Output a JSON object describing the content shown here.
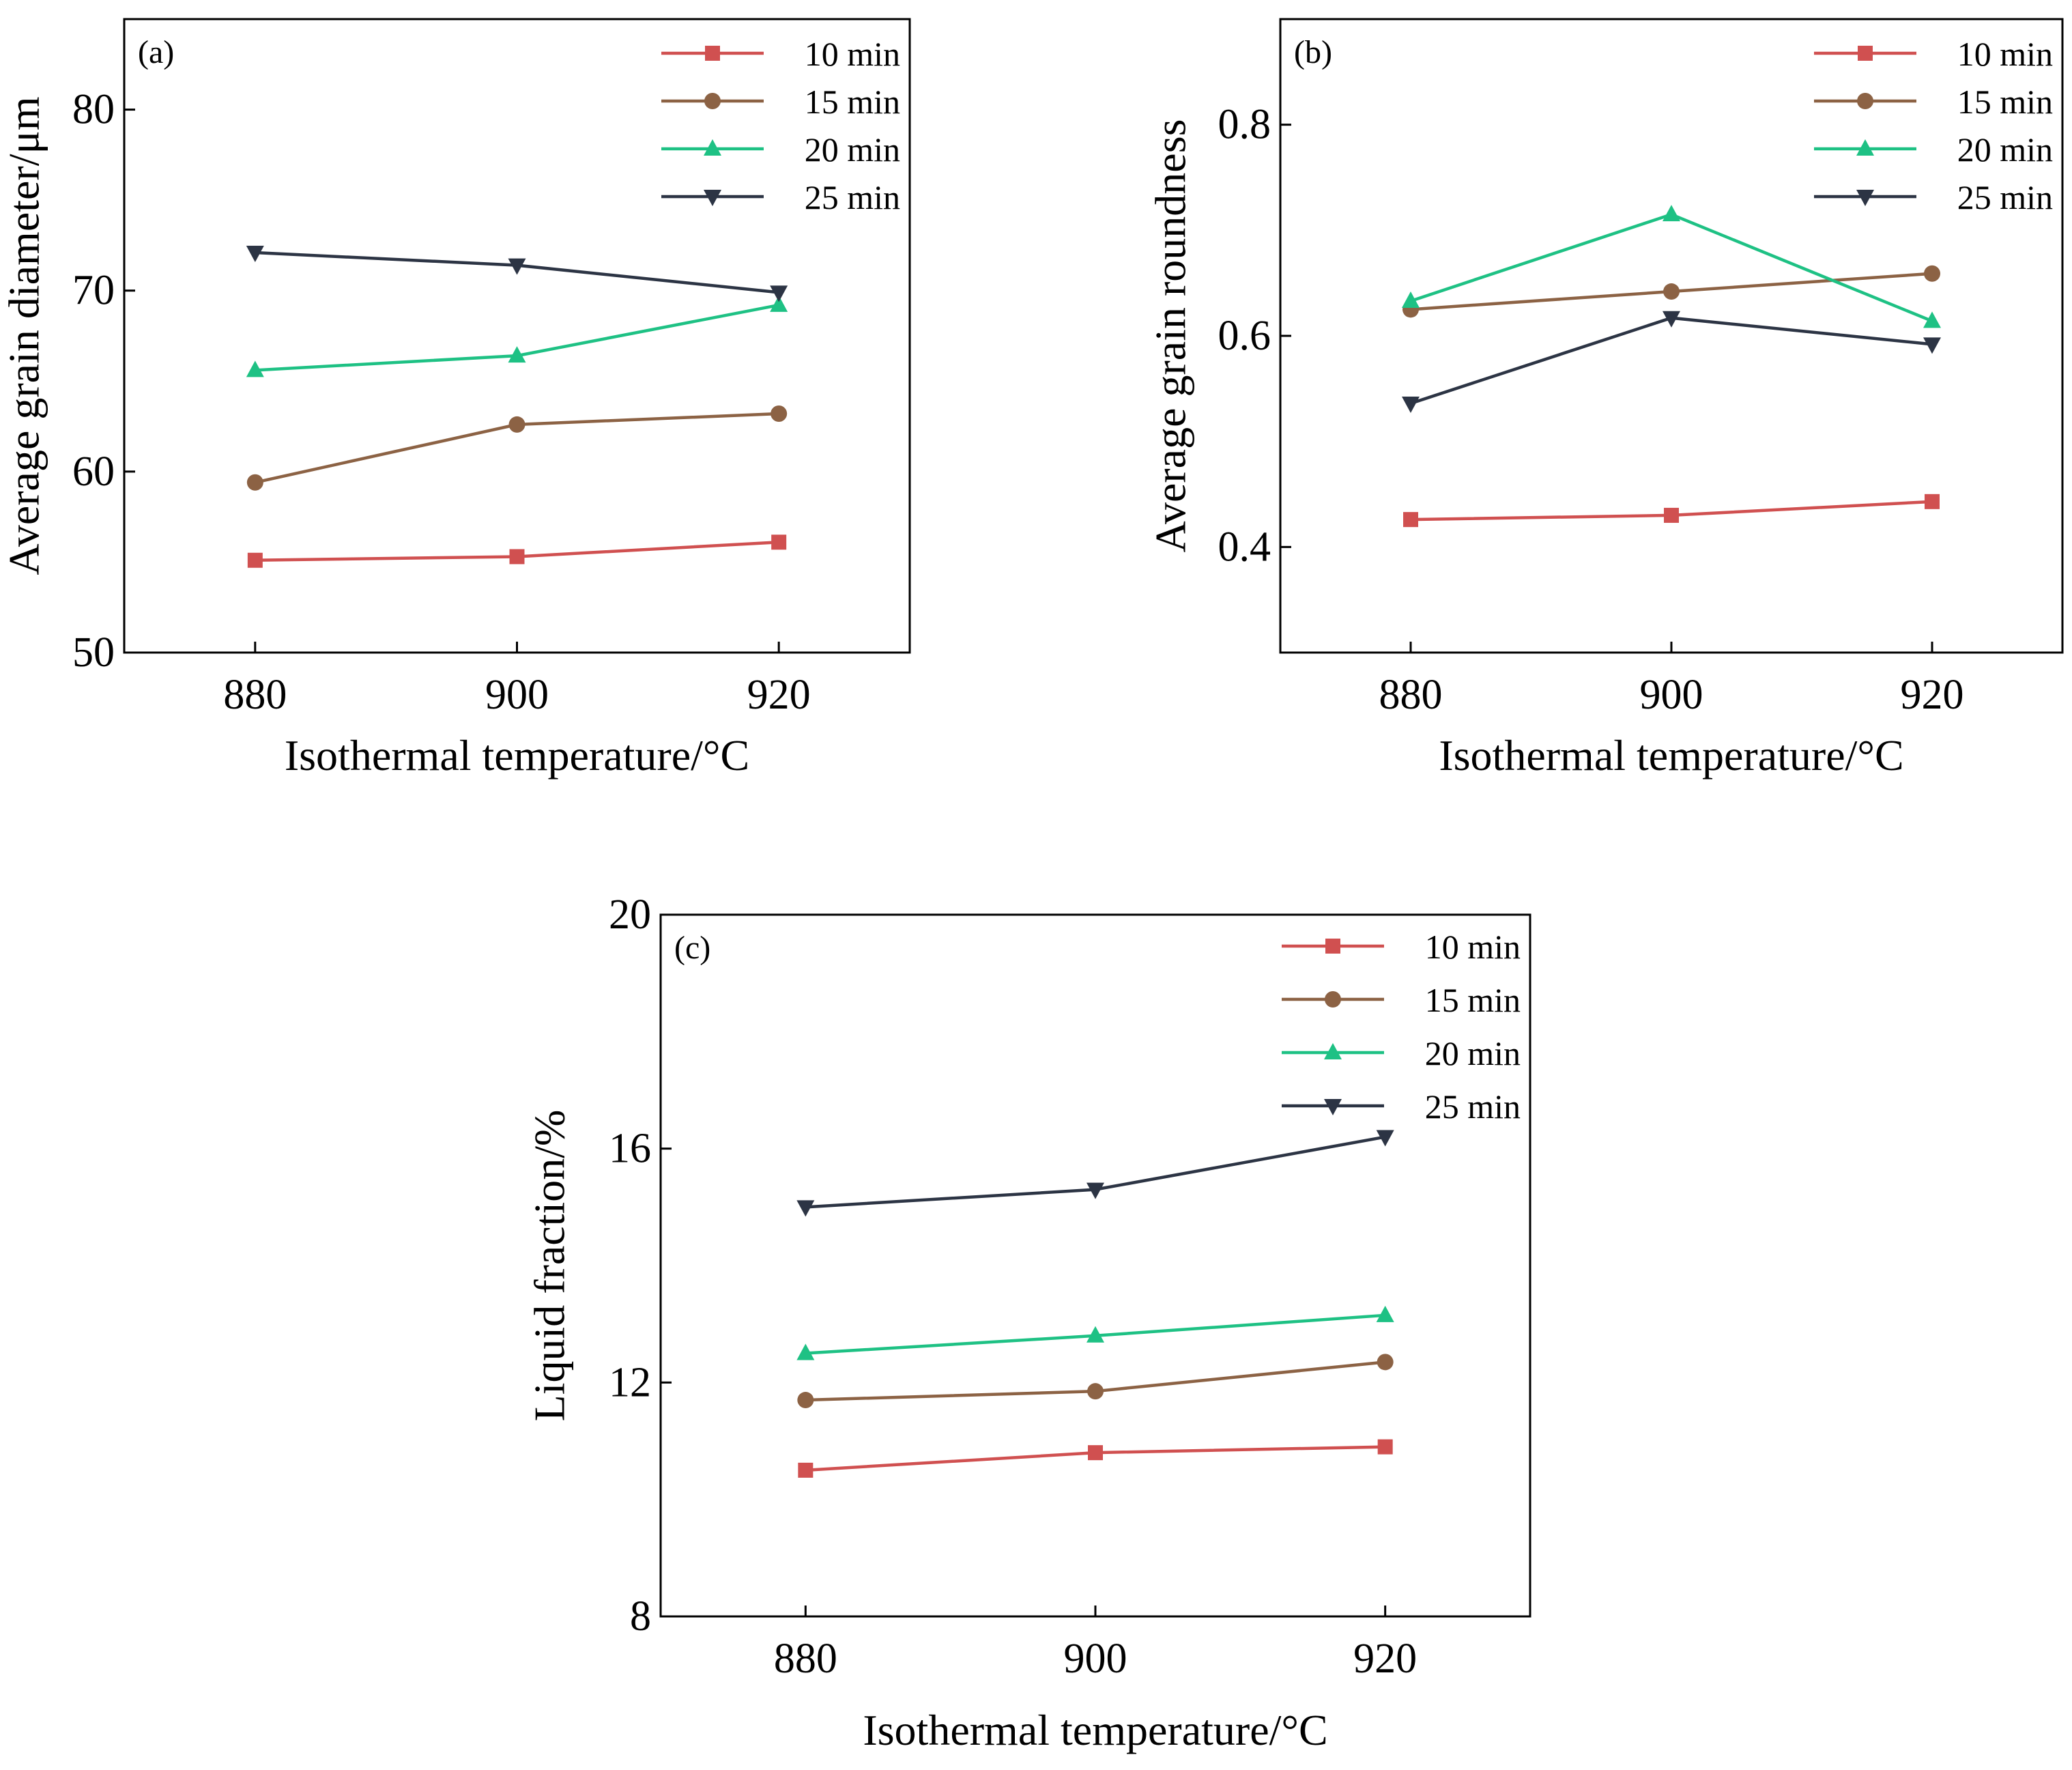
{
  "chart_data": [
    {
      "id": "a",
      "type": "line",
      "panel_label": "(a)",
      "xlabel": "Isothermal temperature/°C",
      "ylabel": "Average grain diameter/μm",
      "x": [
        880,
        900,
        920
      ],
      "xlim": [
        870,
        930
      ],
      "xticks": [
        880,
        900,
        920
      ],
      "ylim": [
        50,
        85
      ],
      "yticks": [
        50,
        60,
        70,
        80
      ],
      "legend_position": "top-right",
      "series": [
        {
          "name": "10 min",
          "marker": "square",
          "color": "#d05050",
          "values": [
            55.1,
            55.3,
            56.1
          ]
        },
        {
          "name": "15 min",
          "marker": "circle",
          "color": "#8c6244",
          "values": [
            59.4,
            62.6,
            63.2
          ]
        },
        {
          "name": "20 min",
          "marker": "triangle-up",
          "color": "#1ec184",
          "values": [
            65.6,
            66.4,
            69.2
          ]
        },
        {
          "name": "25 min",
          "marker": "triangle-down",
          "color": "#2c3444",
          "values": [
            72.1,
            71.4,
            69.9
          ]
        }
      ]
    },
    {
      "id": "b",
      "type": "line",
      "panel_label": "(b)",
      "xlabel": "Isothermal temperature/°C",
      "ylabel": "Average grain roundness",
      "x": [
        880,
        900,
        920
      ],
      "xlim": [
        870,
        930
      ],
      "xticks": [
        880,
        900,
        920
      ],
      "ylim": [
        0.3,
        0.9
      ],
      "yticks": [
        0.4,
        0.6,
        0.8
      ],
      "legend_position": "top-right",
      "series": [
        {
          "name": "10 min",
          "marker": "square",
          "color": "#d05050",
          "values": [
            0.426,
            0.43,
            0.443
          ]
        },
        {
          "name": "15 min",
          "marker": "circle",
          "color": "#8c6244",
          "values": [
            0.625,
            0.642,
            0.659
          ]
        },
        {
          "name": "20 min",
          "marker": "triangle-up",
          "color": "#1ec184",
          "values": [
            0.633,
            0.715,
            0.614
          ]
        },
        {
          "name": "25 min",
          "marker": "triangle-down",
          "color": "#2c3444",
          "values": [
            0.536,
            0.617,
            0.592
          ]
        }
      ]
    },
    {
      "id": "c",
      "type": "line",
      "panel_label": "(c)",
      "xlabel": "Isothermal temperature/°C",
      "ylabel": "Liquid fraction/%",
      "x": [
        880,
        900,
        920
      ],
      "xlim": [
        870,
        930
      ],
      "xticks": [
        880,
        900,
        920
      ],
      "ylim": [
        8,
        20
      ],
      "yticks": [
        8,
        12,
        16,
        20
      ],
      "legend_position": "top-right",
      "series": [
        {
          "name": "10 min",
          "marker": "square",
          "color": "#d05050",
          "values": [
            10.5,
            10.8,
            10.9
          ]
        },
        {
          "name": "15 min",
          "marker": "circle",
          "color": "#8c6244",
          "values": [
            11.7,
            11.85,
            12.35
          ]
        },
        {
          "name": "20 min",
          "marker": "triangle-up",
          "color": "#1ec184",
          "values": [
            12.5,
            12.8,
            13.15
          ]
        },
        {
          "name": "25 min",
          "marker": "triangle-down",
          "color": "#2c3444",
          "values": [
            15.0,
            15.3,
            16.2
          ]
        }
      ]
    }
  ]
}
